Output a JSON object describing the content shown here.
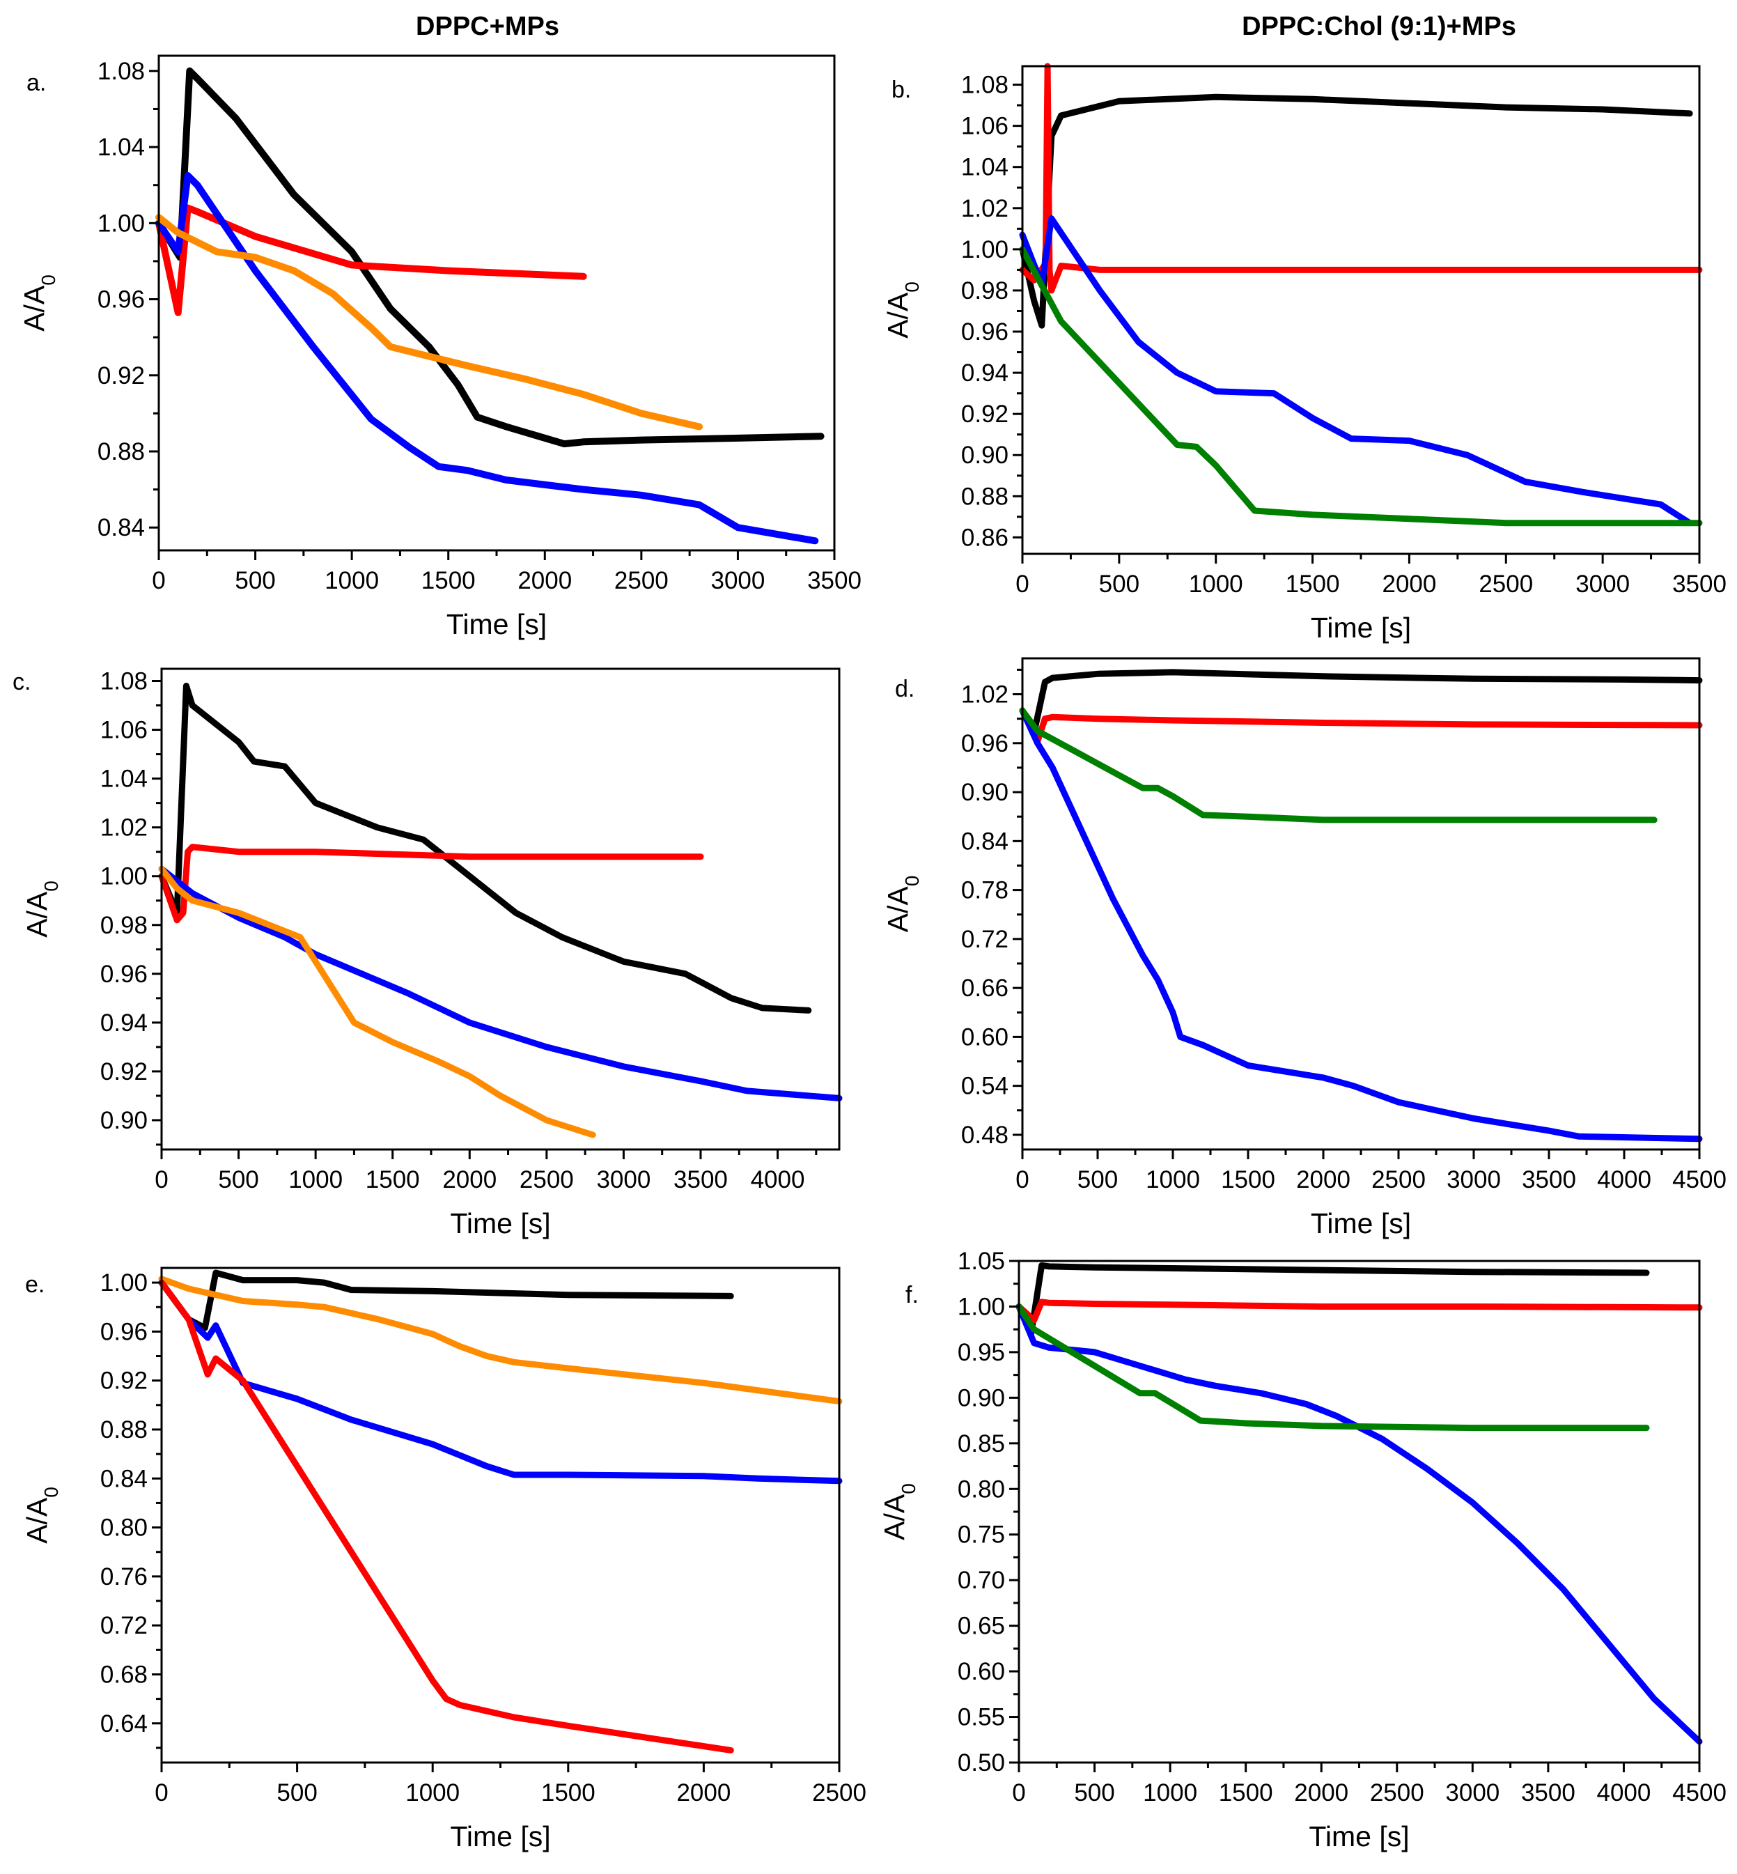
{
  "column_titles": [
    "DPPC+MPs",
    "DPPC:Chol (9:1)+MPs"
  ],
  "chart_data": [
    {
      "panel": "a.",
      "type": "line",
      "xlabel": "Time [s]",
      "ylabel": "A/A0",
      "xlim": [
        0,
        3500
      ],
      "ylim": [
        0.828,
        1.088
      ],
      "xticks": [
        0,
        500,
        1000,
        1500,
        2000,
        2500,
        3000,
        3500
      ],
      "yticks": [
        0.84,
        0.88,
        0.92,
        0.96,
        1.0,
        1.04,
        1.08
      ],
      "ytick_labels": [
        "0.84",
        "0.88",
        "0.92",
        "0.96",
        "1.00",
        "1.04",
        "1.08"
      ],
      "series": [
        {
          "color": "#000000",
          "width": 10,
          "x": [
            0,
            110,
            160,
            200,
            400,
            700,
            1000,
            1200,
            1400,
            1550,
            1650,
            1800,
            2100,
            2200,
            2500,
            3000,
            3430
          ],
          "y": [
            1.0,
            0.982,
            1.08,
            1.076,
            1.055,
            1.015,
            0.985,
            0.955,
            0.935,
            0.915,
            0.898,
            0.893,
            0.884,
            0.885,
            0.886,
            0.887,
            0.888
          ]
        },
        {
          "color": "#ff0000",
          "width": 10,
          "x": [
            0,
            100,
            150,
            200,
            500,
            1000,
            1500,
            2200
          ],
          "y": [
            1.0,
            0.953,
            1.008,
            1.006,
            0.993,
            0.978,
            0.975,
            0.972
          ]
        },
        {
          "color": "#0000ff",
          "width": 10,
          "x": [
            0,
            100,
            150,
            200,
            500,
            800,
            1100,
            1300,
            1450,
            1600,
            1800,
            2200,
            2500,
            2800,
            3000,
            3400
          ],
          "y": [
            1.0,
            0.985,
            1.025,
            1.02,
            0.975,
            0.935,
            0.897,
            0.882,
            0.872,
            0.87,
            0.865,
            0.86,
            0.857,
            0.852,
            0.84,
            0.833
          ]
        },
        {
          "color": "#ff8c00",
          "width": 10,
          "x": [
            0,
            100,
            300,
            500,
            700,
            900,
            1100,
            1200,
            1400,
            1600,
            1900,
            2200,
            2500,
            2800
          ],
          "y": [
            1.003,
            0.995,
            0.985,
            0.982,
            0.975,
            0.963,
            0.945,
            0.935,
            0.93,
            0.925,
            0.918,
            0.91,
            0.9,
            0.893
          ]
        }
      ]
    },
    {
      "panel": "b.",
      "type": "line",
      "xlabel": "Time [s]",
      "ylabel": "A/A0",
      "xlim": [
        0,
        3500
      ],
      "ylim": [
        0.852,
        1.089
      ],
      "xticks": [
        0,
        500,
        1000,
        1500,
        2000,
        2500,
        3000,
        3500
      ],
      "yticks": [
        0.86,
        0.88,
        0.9,
        0.92,
        0.94,
        0.96,
        0.98,
        1.0,
        1.02,
        1.04,
        1.06,
        1.08
      ],
      "ytick_labels": [
        "0.86",
        "0.88",
        "0.90",
        "0.92",
        "0.94",
        "0.96",
        "0.98",
        "1.00",
        "1.02",
        "1.04",
        "1.06",
        "1.08"
      ],
      "series": [
        {
          "color": "#000000",
          "width": 9,
          "x": [
            0,
            60,
            100,
            150,
            200,
            500,
            1000,
            1500,
            2000,
            2500,
            3000,
            3450
          ],
          "y": [
            1.0,
            0.975,
            0.963,
            1.055,
            1.065,
            1.072,
            1.074,
            1.073,
            1.071,
            1.069,
            1.068,
            1.066
          ]
        },
        {
          "color": "#ff0000",
          "width": 9,
          "x": [
            0,
            60,
            120,
            130,
            140,
            150,
            200,
            400,
            500,
            1000,
            2000,
            3000,
            3500
          ],
          "y": [
            0.99,
            0.985,
            0.993,
            1.089,
            0.99,
            0.98,
            0.992,
            0.99,
            0.99,
            0.99,
            0.99,
            0.99,
            0.99
          ]
        },
        {
          "color": "#0000ff",
          "width": 9,
          "x": [
            0,
            100,
            150,
            200,
            400,
            600,
            800,
            1000,
            1300,
            1500,
            1700,
            2000,
            2300,
            2600,
            2900,
            3300,
            3450
          ],
          "y": [
            1.007,
            0.983,
            1.015,
            1.008,
            0.98,
            0.955,
            0.94,
            0.931,
            0.93,
            0.918,
            0.908,
            0.907,
            0.9,
            0.887,
            0.882,
            0.876,
            0.867
          ]
        },
        {
          "color": "#008000",
          "width": 9,
          "x": [
            0,
            200,
            400,
            600,
            800,
            900,
            1000,
            1200,
            1500,
            2000,
            2500,
            3000,
            3500
          ],
          "y": [
            1.0,
            0.965,
            0.945,
            0.925,
            0.905,
            0.904,
            0.895,
            0.873,
            0.871,
            0.869,
            0.867,
            0.867,
            0.867
          ]
        }
      ]
    },
    {
      "panel": "c.",
      "type": "line",
      "xlabel": "Time [s]",
      "ylabel": "A/A0",
      "xlim": [
        0,
        4400
      ],
      "ylim": [
        0.888,
        1.085
      ],
      "xticks": [
        0,
        500,
        1000,
        1500,
        2000,
        2500,
        3000,
        3500,
        4000
      ],
      "yticks": [
        0.9,
        0.92,
        0.94,
        0.96,
        0.98,
        1.0,
        1.02,
        1.04,
        1.06,
        1.08
      ],
      "ytick_labels": [
        "0.90",
        "0.92",
        "0.94",
        "0.96",
        "0.98",
        "1.00",
        "1.02",
        "1.04",
        "1.06",
        "1.08"
      ],
      "series": [
        {
          "color": "#000000",
          "width": 9,
          "x": [
            0,
            100,
            160,
            200,
            500,
            600,
            800,
            1000,
            1200,
            1400,
            1700,
            2000,
            2300,
            2600,
            3000,
            3400,
            3700,
            3900,
            4200
          ],
          "y": [
            1.0,
            0.985,
            1.078,
            1.07,
            1.055,
            1.047,
            1.045,
            1.03,
            1.025,
            1.02,
            1.015,
            1.0,
            0.985,
            0.975,
            0.965,
            0.96,
            0.95,
            0.946,
            0.945
          ]
        },
        {
          "color": "#ff0000",
          "width": 9,
          "x": [
            0,
            100,
            140,
            170,
            200,
            500,
            1000,
            2000,
            3500
          ],
          "y": [
            1.0,
            0.982,
            0.985,
            1.01,
            1.012,
            1.01,
            1.01,
            1.008,
            1.008
          ]
        },
        {
          "color": "#0000ff",
          "width": 9,
          "x": [
            0,
            100,
            200,
            500,
            800,
            1000,
            1300,
            1600,
            2000,
            2500,
            3000,
            3500,
            3800,
            4400
          ],
          "y": [
            1.003,
            0.998,
            0.993,
            0.983,
            0.975,
            0.968,
            0.96,
            0.952,
            0.94,
            0.93,
            0.922,
            0.916,
            0.912,
            0.909
          ]
        },
        {
          "color": "#ff8c00",
          "width": 9,
          "x": [
            0,
            100,
            200,
            500,
            700,
            900,
            1050,
            1150,
            1250,
            1500,
            1800,
            2000,
            2200,
            2500,
            2800
          ],
          "y": [
            1.003,
            0.995,
            0.99,
            0.985,
            0.98,
            0.975,
            0.96,
            0.95,
            0.94,
            0.932,
            0.924,
            0.918,
            0.91,
            0.9,
            0.894
          ]
        }
      ]
    },
    {
      "panel": "d.",
      "type": "line",
      "xlabel": "Time [s]",
      "ylabel": "A/A0",
      "xlim": [
        0,
        4500
      ],
      "ylim": [
        0.462,
        1.064
      ],
      "xticks": [
        0,
        500,
        1000,
        1500,
        2000,
        2500,
        3000,
        3500,
        4000,
        4500
      ],
      "yticks": [
        0.48,
        0.54,
        0.6,
        0.66,
        0.72,
        0.78,
        0.84,
        0.9,
        0.96,
        1.02
      ],
      "ytick_labels": [
        "0.48",
        "0.54",
        "0.60",
        "0.66",
        "0.72",
        "0.78",
        "0.84",
        "0.90",
        "0.96",
        "1.02"
      ],
      "series": [
        {
          "color": "#000000",
          "width": 9,
          "x": [
            0,
            80,
            150,
            200,
            500,
            1000,
            2000,
            3000,
            4000,
            4500
          ],
          "y": [
            1.0,
            0.975,
            1.035,
            1.04,
            1.045,
            1.047,
            1.042,
            1.039,
            1.038,
            1.037
          ]
        },
        {
          "color": "#ff0000",
          "width": 9,
          "x": [
            0,
            100,
            150,
            200,
            500,
            1000,
            2000,
            3000,
            4500
          ],
          "y": [
            1.0,
            0.962,
            0.99,
            0.992,
            0.99,
            0.988,
            0.985,
            0.983,
            0.982
          ]
        },
        {
          "color": "#0000ff",
          "width": 9,
          "x": [
            0,
            100,
            200,
            400,
            600,
            800,
            900,
            1000,
            1050,
            1200,
            1500,
            2000,
            2200,
            2500,
            3000,
            3500,
            3700,
            4500
          ],
          "y": [
            1.0,
            0.96,
            0.93,
            0.85,
            0.77,
            0.7,
            0.67,
            0.63,
            0.6,
            0.59,
            0.565,
            0.55,
            0.54,
            0.52,
            0.5,
            0.485,
            0.478,
            0.475
          ]
        },
        {
          "color": "#008000",
          "width": 9,
          "x": [
            0,
            100,
            300,
            600,
            800,
            900,
            1000,
            1200,
            1500,
            2000,
            3000,
            4200
          ],
          "y": [
            1.0,
            0.975,
            0.955,
            0.925,
            0.905,
            0.905,
            0.895,
            0.872,
            0.87,
            0.866,
            0.866,
            0.866
          ]
        }
      ]
    },
    {
      "panel": "e.",
      "type": "line",
      "xlabel": "Time [s]",
      "ylabel": "A/A0",
      "xlim": [
        0,
        2500
      ],
      "ylim": [
        0.608,
        1.012
      ],
      "xticks": [
        0,
        500,
        1000,
        1500,
        2000,
        2500
      ],
      "yticks": [
        0.64,
        0.68,
        0.72,
        0.76,
        0.8,
        0.84,
        0.88,
        0.92,
        0.96,
        1.0
      ],
      "ytick_labels": [
        "0.64",
        "0.68",
        "0.72",
        "0.76",
        "0.80",
        "0.84",
        "0.88",
        "0.92",
        "0.96",
        "1.00"
      ],
      "series": [
        {
          "color": "#000000",
          "width": 9,
          "x": [
            0,
            100,
            160,
            200,
            300,
            500,
            600,
            700,
            1000,
            1500,
            2100
          ],
          "y": [
            1.0,
            0.97,
            0.963,
            1.008,
            1.002,
            1.002,
            1.0,
            0.994,
            0.993,
            0.99,
            0.989
          ]
        },
        {
          "color": "#ff8c00",
          "width": 9,
          "x": [
            0,
            100,
            300,
            500,
            600,
            800,
            1000,
            1100,
            1200,
            1300,
            1500,
            2000,
            2500
          ],
          "y": [
            1.003,
            0.995,
            0.985,
            0.982,
            0.98,
            0.97,
            0.958,
            0.948,
            0.94,
            0.935,
            0.93,
            0.918,
            0.903
          ]
        },
        {
          "color": "#0000ff",
          "width": 9,
          "x": [
            0,
            100,
            170,
            200,
            300,
            500,
            700,
            1000,
            1200,
            1300,
            1500,
            2000,
            2200,
            2500
          ],
          "y": [
            1.0,
            0.97,
            0.955,
            0.965,
            0.918,
            0.905,
            0.888,
            0.868,
            0.85,
            0.843,
            0.843,
            0.842,
            0.84,
            0.838
          ]
        },
        {
          "color": "#ff0000",
          "width": 9,
          "x": [
            0,
            100,
            170,
            200,
            300,
            500,
            700,
            900,
            1000,
            1050,
            1100,
            1300,
            1500,
            1800,
            2100
          ],
          "y": [
            1.0,
            0.97,
            0.925,
            0.938,
            0.92,
            0.85,
            0.78,
            0.71,
            0.675,
            0.66,
            0.655,
            0.645,
            0.638,
            0.628,
            0.618
          ]
        }
      ]
    },
    {
      "panel": "f.",
      "type": "line",
      "xlabel": "Time [s]",
      "ylabel": "A/A0",
      "xlim": [
        0,
        4500
      ],
      "ylim": [
        0.5,
        1.05
      ],
      "xticks": [
        0,
        500,
        1000,
        1500,
        2000,
        2500,
        3000,
        3500,
        4000,
        4500
      ],
      "yticks": [
        0.5,
        0.55,
        0.6,
        0.65,
        0.7,
        0.75,
        0.8,
        0.85,
        0.9,
        0.95,
        1.0,
        1.05
      ],
      "ytick_labels": [
        "0.50",
        "0.55",
        "0.60",
        "0.65",
        "0.70",
        "0.75",
        "0.80",
        "0.85",
        "0.90",
        "0.95",
        "1.00",
        "1.05"
      ],
      "series": [
        {
          "color": "#000000",
          "width": 9,
          "x": [
            0,
            80,
            150,
            200,
            500,
            1000,
            2000,
            3000,
            4150
          ],
          "y": [
            1.0,
            0.97,
            1.045,
            1.044,
            1.043,
            1.042,
            1.04,
            1.038,
            1.037
          ]
        },
        {
          "color": "#ff0000",
          "width": 9,
          "x": [
            0,
            100,
            150,
            200,
            500,
            1000,
            2000,
            3000,
            4500
          ],
          "y": [
            1.0,
            0.985,
            1.005,
            1.004,
            1.003,
            1.002,
            1.0,
            1.0,
            0.999
          ]
        },
        {
          "color": "#0000ff",
          "width": 9,
          "x": [
            0,
            100,
            200,
            500,
            700,
            900,
            1100,
            1300,
            1600,
            1900,
            2100,
            2400,
            2700,
            3000,
            3300,
            3600,
            3900,
            4200,
            4500
          ],
          "y": [
            1.0,
            0.96,
            0.955,
            0.95,
            0.94,
            0.93,
            0.92,
            0.913,
            0.905,
            0.893,
            0.88,
            0.855,
            0.822,
            0.785,
            0.74,
            0.69,
            0.63,
            0.57,
            0.523
          ]
        },
        {
          "color": "#008000",
          "width": 9,
          "x": [
            0,
            100,
            300,
            600,
            800,
            900,
            1000,
            1200,
            1500,
            2000,
            3000,
            4150
          ],
          "y": [
            1.0,
            0.975,
            0.955,
            0.925,
            0.905,
            0.905,
            0.895,
            0.875,
            0.872,
            0.869,
            0.867,
            0.867
          ]
        }
      ]
    }
  ]
}
